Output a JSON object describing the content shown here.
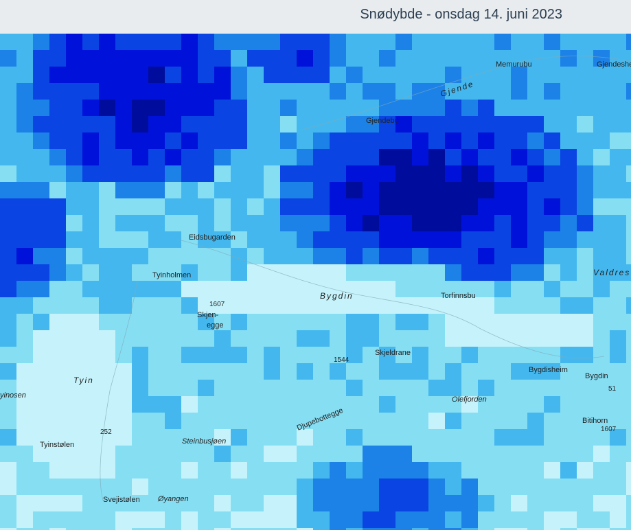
{
  "header": {
    "title": "Snødybde - onsdag 14. juni 2023"
  },
  "map": {
    "labels": [
      "Memurubu",
      "Gjendeshe",
      "Gjende",
      "Gjendebu",
      "Eidsbugarden",
      "Tyinholmen",
      "Bygdin",
      "Torfinnsbu",
      "Valdres",
      "1607",
      "Skjen-",
      "egge",
      "Skjeldrane",
      "1544",
      "Bygdisheim",
      "Bygdin",
      "51",
      "Olefjorden",
      "Bitihorn",
      "1607",
      "Djupebottegge",
      "Tyin",
      "yinosen",
      "Tyinstølen",
      "252",
      "Steinbusjøen",
      "Svejistølen",
      "Øyangen"
    ]
  }
}
